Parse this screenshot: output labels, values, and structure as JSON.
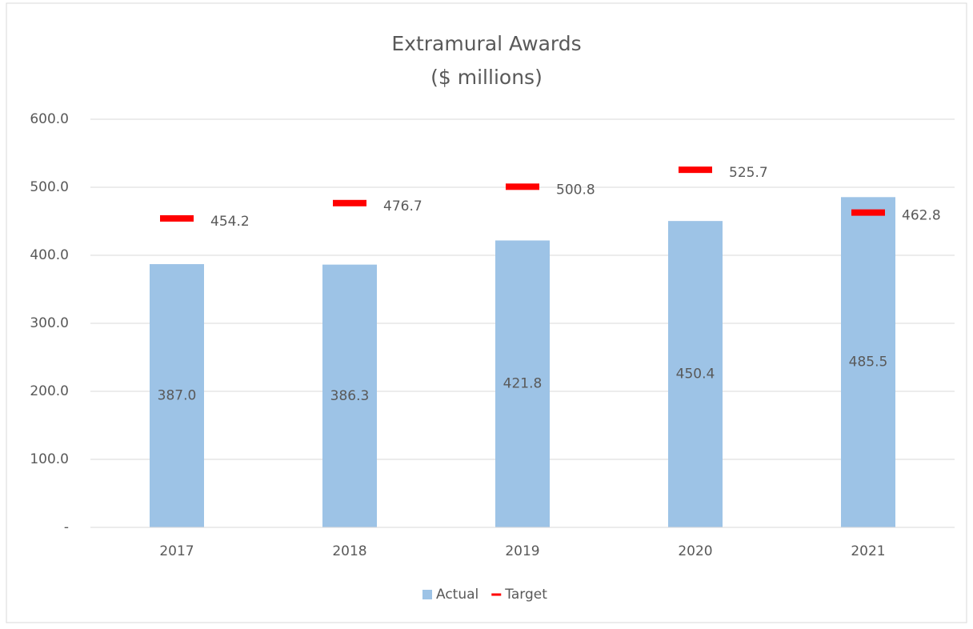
{
  "chart_data": {
    "type": "bar",
    "title": "Extramural Awards",
    "subtitle": "($ millions)",
    "categories": [
      "2017",
      "2018",
      "2019",
      "2020",
      "2021"
    ],
    "series": [
      {
        "name": "Actual",
        "type": "bar",
        "color": "#9dc3e6",
        "values": [
          387.0,
          386.3,
          421.8,
          450.4,
          485.5
        ],
        "value_labels": [
          "387.0",
          "386.3",
          "421.8",
          "450.4",
          "485.5"
        ]
      },
      {
        "name": "Target",
        "type": "dash",
        "color": "#ff0000",
        "values": [
          454.2,
          476.7,
          500.8,
          525.7,
          462.8
        ]
      }
    ],
    "ylim": [
      0,
      600
    ],
    "yticks": [
      {
        "value": 0,
        "label": "-"
      },
      {
        "value": 100,
        "label": "100.0"
      },
      {
        "value": 200,
        "label": "200.0"
      },
      {
        "value": 300,
        "label": "300.0"
      },
      {
        "value": 400,
        "label": "400.0"
      },
      {
        "value": 500,
        "label": "500.0"
      },
      {
        "value": 600,
        "label": "600.0"
      }
    ],
    "grid": true,
    "legend": "bottom"
  }
}
